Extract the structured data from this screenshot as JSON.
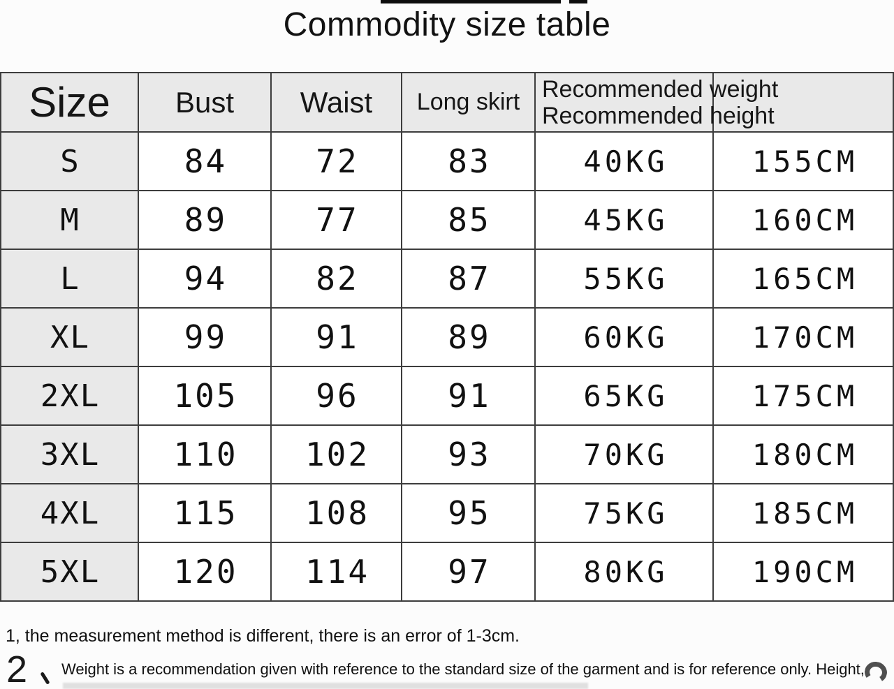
{
  "title": "Commodity size table",
  "chart_data": {
    "type": "table",
    "title": "Commodity size table",
    "columns": [
      "Size",
      "Bust",
      "Waist",
      "Long skirt",
      "Recommended weight",
      "Recommended height"
    ],
    "header_display": {
      "size": "Size",
      "bust": "Bust",
      "waist": "Waist",
      "long_skirt": "Long skirt",
      "merged_line1": "Recommended weight",
      "merged_line2": "Recommended height"
    },
    "rows": [
      {
        "size": "S",
        "bust": "84",
        "waist": "72",
        "long_skirt": "83",
        "weight": "40KG",
        "height": "155CM"
      },
      {
        "size": "M",
        "bust": "89",
        "waist": "77",
        "long_skirt": "85",
        "weight": "45KG",
        "height": "160CM"
      },
      {
        "size": "L",
        "bust": "94",
        "waist": "82",
        "long_skirt": "87",
        "weight": "55KG",
        "height": "165CM"
      },
      {
        "size": "XL",
        "bust": "99",
        "waist": "91",
        "long_skirt": "89",
        "weight": "60KG",
        "height": "170CM"
      },
      {
        "size": "2XL",
        "bust": "105",
        "waist": "96",
        "long_skirt": "91",
        "weight": "65KG",
        "height": "175CM"
      },
      {
        "size": "3XL",
        "bust": "110",
        "waist": "102",
        "long_skirt": "93",
        "weight": "70KG",
        "height": "180CM"
      },
      {
        "size": "4XL",
        "bust": "115",
        "waist": "108",
        "long_skirt": "95",
        "weight": "75KG",
        "height": "185CM"
      },
      {
        "size": "5XL",
        "bust": "120",
        "waist": "114",
        "long_skirt": "97",
        "weight": "80KG",
        "height": "190CM"
      }
    ],
    "layout_hints": {
      "header_background": "#e9e9e9",
      "size_column_background": "#e9e9e9",
      "grid_on": true
    }
  },
  "notes": {
    "note1": "1, the measurement method is different, there is an error of 1-3cm.",
    "note2_marker": "2、",
    "note2_marker_digit": "2",
    "note2_text": "Weight is a recommendation given with reference to the standard size of the garment and is for reference only. Height,"
  },
  "colors": {
    "page_bg": "#fcfcfc",
    "header_bg": "#e9e9e9",
    "cell_bg": "#ffffff",
    "border": "#3d3d3d",
    "text": "#161616"
  },
  "icons": {
    "partial_arc": "partial-circle-arc"
  }
}
